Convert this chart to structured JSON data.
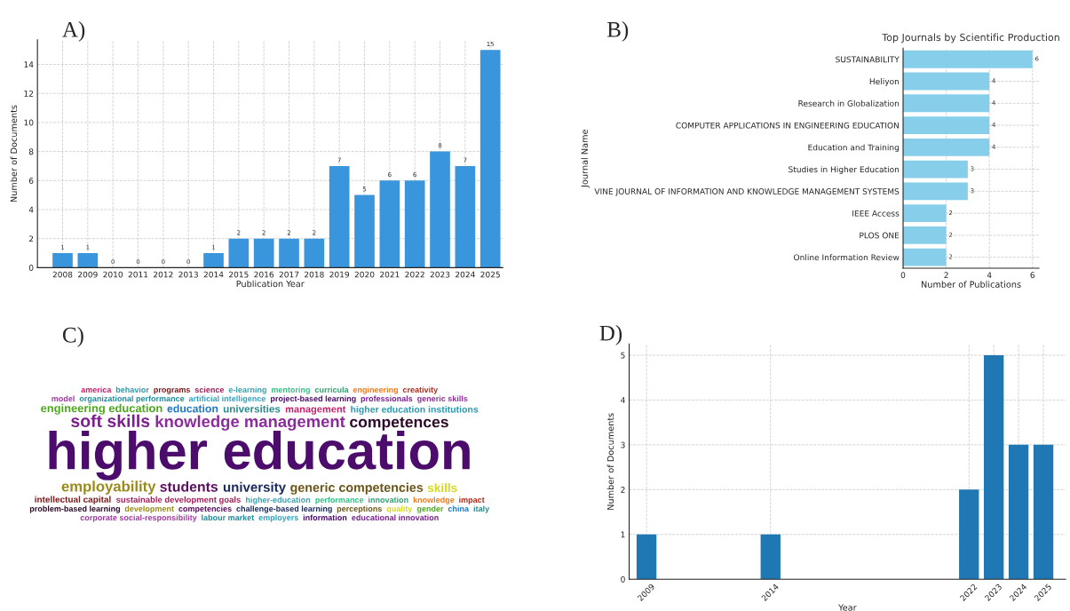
{
  "chart_data": [
    {
      "type": "bar",
      "annotations": [
        "A)"
      ],
      "xlabel": "Publication Year",
      "ylabel": "Number of Documents",
      "categories": [
        "2008",
        "2009",
        "2010",
        "2011",
        "2012",
        "2013",
        "2014",
        "2015",
        "2016",
        "2017",
        "2018",
        "2019",
        "2020",
        "2021",
        "2022",
        "2023",
        "2024",
        "2025"
      ],
      "values": [
        1,
        1,
        0,
        0,
        0,
        0,
        1,
        2,
        2,
        2,
        2,
        7,
        5,
        6,
        6,
        8,
        7,
        15
      ],
      "color": "#3a96dc",
      "ylim": [
        0,
        15.7
      ],
      "yticks": [
        0,
        2,
        4,
        6,
        8,
        10,
        12,
        14
      ],
      "grid": true,
      "data_labels": true
    },
    {
      "type": "bar",
      "orientation": "horizontal",
      "annotations": [
        "B)"
      ],
      "title": "Top Journals by Scientific Production",
      "xlabel": "Number of Publications",
      "ylabel": "Journal Name",
      "categories": [
        "SUSTAINABILITY",
        "Heliyon",
        "Research in Globalization",
        "COMPUTER APPLICATIONS IN ENGINEERING EDUCATION",
        "Education and Training",
        "Studies in Higher Education",
        "VINE JOURNAL OF INFORMATION AND KNOWLEDGE MANAGEMENT SYSTEMS",
        "IEEE Access",
        "PLOS ONE",
        "Online Information Review"
      ],
      "values": [
        6,
        4,
        4,
        4,
        4,
        3,
        3,
        2,
        2,
        2
      ],
      "color": "#87ceeb",
      "xlim": [
        0,
        6.3
      ],
      "xticks": [
        0,
        2,
        4,
        6
      ],
      "grid": true,
      "data_labels": true
    },
    {
      "type": "other",
      "annotations": [
        "C)",
        "higher education",
        "soft skills",
        "knowledge management",
        "competences",
        "employability",
        "students",
        "university",
        "generic competencies",
        "skills",
        "engineering education",
        "education",
        "universities",
        "management",
        "higher education institutions",
        "intellectual capital",
        "sustainable development goals",
        "higher-education",
        "performance",
        "innovation",
        "knowledge",
        "impact",
        "model",
        "organizational performance",
        "artificial intelligence",
        "project-based learning",
        "professionals",
        "generic skills",
        "problem-based learning",
        "development",
        "competencies",
        "challenge-based learning",
        "perceptions",
        "quality",
        "gender",
        "china",
        "italy",
        "america",
        "behavior",
        "programs",
        "science",
        "e-learning",
        "mentoring",
        "curricula",
        "engineering",
        "creativity",
        "corporate social-responsibility",
        "labour market",
        "employers",
        "information",
        "educational innovation"
      ]
    },
    {
      "type": "bar",
      "annotations": [
        "D)"
      ],
      "xlabel": "Year",
      "ylabel": "Number of Documents",
      "x": [
        2009,
        2014,
        2022,
        2023,
        2024,
        2025
      ],
      "values": [
        1,
        1,
        2,
        5,
        3,
        3
      ],
      "color": "#1f77b4",
      "xlim": [
        2008.3,
        2025.9
      ],
      "xticks": [
        2009,
        2014,
        2022,
        2023,
        2024,
        2025
      ],
      "ylim": [
        0,
        5.25
      ],
      "yticks": [
        0,
        1,
        2,
        3,
        4,
        5
      ],
      "grid": true
    }
  ]
}
